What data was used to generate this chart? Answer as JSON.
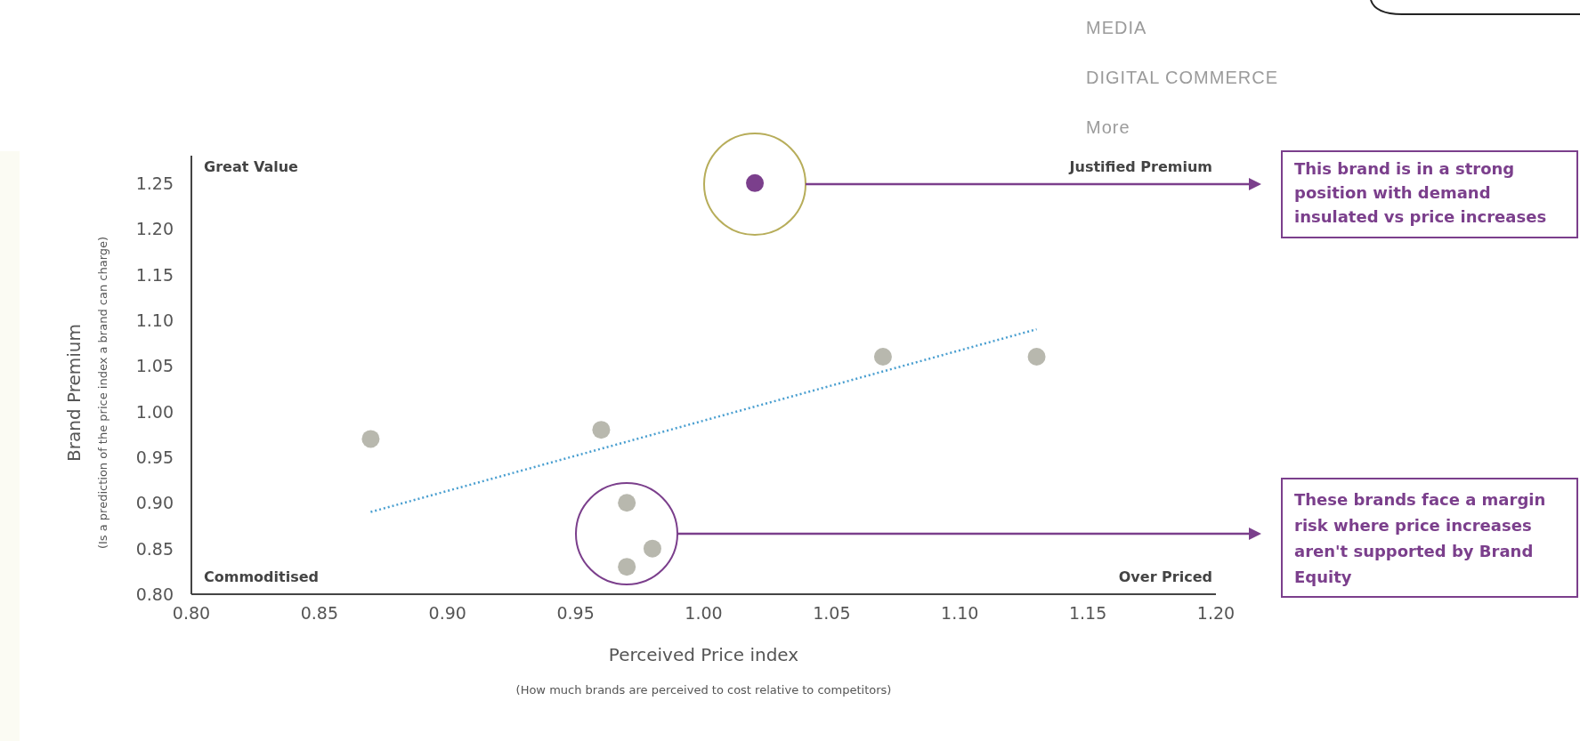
{
  "chart_data": {
    "type": "scatter",
    "xlabel": "Perceived Price index",
    "ylabel": "Brand Premium",
    "subtitle": "(Is a prediction of the price index a brand can charge)",
    "xlim": [
      0.8,
      1.2
    ],
    "xticks": [
      {
        "value": 0.8,
        "label": "0.80"
      },
      {
        "value": 0.85,
        "label": "0.85"
      },
      {
        "value": 0.9,
        "label": "0.90"
      },
      {
        "value": 0.95,
        "label": "0.95"
      },
      {
        "value": 1.0,
        "label": "1.00"
      },
      {
        "value": 1.05,
        "label": "1.05"
      },
      {
        "value": 1.1,
        "label": "1.10"
      },
      {
        "value": 1.15,
        "label": "1.15"
      },
      {
        "value": 1.2,
        "label": "1.20"
      }
    ],
    "ylim": [
      0.8,
      1.28
    ],
    "yticks": [
      {
        "value": 0.8,
        "label": "0.80"
      },
      {
        "value": 0.85,
        "label": "0.85"
      },
      {
        "value": 0.9,
        "label": "0.90"
      },
      {
        "value": 0.95,
        "label": "0.95"
      },
      {
        "value": 1.0,
        "label": "1.00"
      },
      {
        "value": 1.05,
        "label": "1.05"
      },
      {
        "value": 1.1,
        "label": "1.10"
      },
      {
        "value": 1.15,
        "label": "1.15"
      },
      {
        "value": 1.2,
        "label": "1.20"
      },
      {
        "value": 1.25,
        "label": "1.25"
      }
    ],
    "marker": "circle",
    "series": [
      {
        "color": "#b8b8ae",
        "x": [
          0.87,
          0.96,
          0.97,
          0.98,
          0.97,
          1.07,
          1.13
        ],
        "values": [
          0.97,
          0.98,
          0.9,
          0.85,
          0.83,
          1.06,
          1.06
        ]
      },
      {
        "color": "#7b3f8c",
        "x": [
          1.02
        ],
        "values": [
          1.25
        ]
      },
      {
        "type": "line",
        "color": "#4a9fd0",
        "line_style": "dotted",
        "marker": "none",
        "x": [
          0.87,
          1.13
        ],
        "values": [
          0.89,
          1.09
        ]
      }
    ],
    "annotations": [
      "Great Value",
      "Justified Premium",
      "Commoditised",
      "Over Priced",
      "This brand is in a strong position with demand insulated vs price increases",
      "These brands face a margin risk where price increases aren't supported by Brand Equity",
      "(How much brands are perceived to cost relative to competitors)",
      "MEDIA",
      "DIGITAL COMMERCE",
      "More"
    ]
  }
}
